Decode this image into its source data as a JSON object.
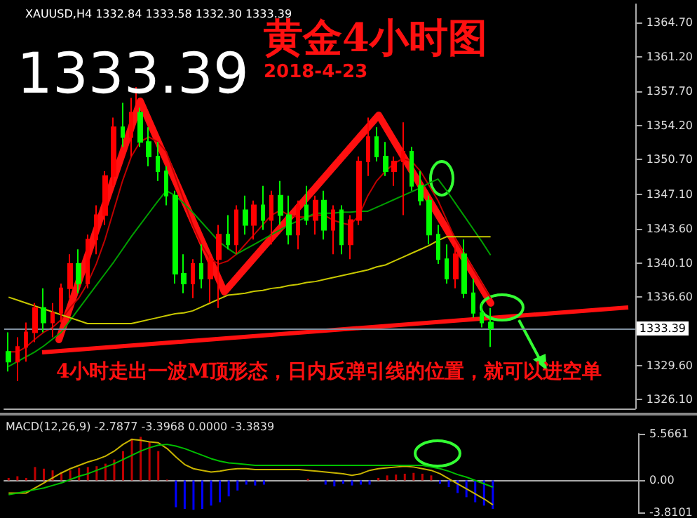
{
  "chart_data": [
    {
      "type": "candlestick",
      "title": "黄金4小时图",
      "subtitle": "2018-4-23",
      "annotations": [
        "XAUUSD,H4 1332.84 1333.58 1332.30 1333.39",
        "1333.39",
        "4小时走出一波M顶形态，日内反弹引线的位置，就可以进空单"
      ],
      "categories": [
        null,
        null,
        null,
        null,
        null,
        null,
        null,
        null,
        null,
        null,
        null,
        null,
        null,
        null,
        null,
        null,
        null,
        null,
        null,
        null,
        null,
        null,
        null,
        null,
        null,
        null,
        null,
        null,
        null,
        null,
        null,
        null,
        null,
        null,
        null,
        null,
        null,
        null,
        null,
        null,
        null,
        null,
        null,
        null,
        null,
        null,
        null,
        null,
        null,
        null,
        null,
        null,
        null,
        null,
        null,
        null,
        null,
        null,
        null,
        null,
        null,
        null,
        null,
        null,
        null,
        null,
        null,
        null,
        null,
        null,
        null,
        null
      ],
      "ohlc": [
        [
          1331,
          1333,
          1329,
          1330
        ],
        [
          1330,
          1332.5,
          1328,
          1331.5
        ],
        [
          1331.5,
          1334,
          1330,
          1333
        ],
        [
          1333,
          1336,
          1332,
          1335.5
        ],
        [
          1335.5,
          1337.5,
          1333,
          1334
        ],
        [
          1334,
          1336,
          1332.5,
          1335
        ],
        [
          1335,
          1338,
          1334,
          1337.5
        ],
        [
          1337.5,
          1341,
          1336.5,
          1340
        ],
        [
          1340,
          1341.5,
          1337,
          1338
        ],
        [
          1338,
          1343,
          1337.5,
          1342.5
        ],
        [
          1342.5,
          1346,
          1341,
          1345
        ],
        [
          1345,
          1349.5,
          1344,
          1349
        ],
        [
          1349,
          1355,
          1348,
          1354
        ],
        [
          1354,
          1356.5,
          1352,
          1353
        ],
        [
          1353,
          1357,
          1351,
          1355.5
        ],
        [
          1355.5,
          1356,
          1352,
          1352.5
        ],
        [
          1352.5,
          1354,
          1350,
          1351
        ],
        [
          1351,
          1352.5,
          1348.5,
          1349.5
        ],
        [
          1349.5,
          1350,
          1346,
          1347
        ],
        [
          1347,
          1347.5,
          1338,
          1339
        ],
        [
          1339,
          1341,
          1337,
          1338
        ],
        [
          1338,
          1340.5,
          1336.5,
          1340
        ],
        [
          1340,
          1342,
          1337.5,
          1338.5
        ],
        [
          1338.5,
          1341,
          1336,
          1340.5
        ],
        [
          1340.5,
          1344,
          1335.5,
          1343
        ],
        [
          1343,
          1345,
          1341.5,
          1342
        ],
        [
          1342,
          1346,
          1341,
          1345.5
        ],
        [
          1345.5,
          1347,
          1343,
          1344
        ],
        [
          1344,
          1346.5,
          1342.5,
          1346
        ],
        [
          1346,
          1348,
          1343.5,
          1344.5
        ],
        [
          1344.5,
          1347.5,
          1342,
          1347
        ],
        [
          1347,
          1348.5,
          1344,
          1345
        ],
        [
          1345,
          1347,
          1342,
          1343
        ],
        [
          1343,
          1346.5,
          1341.5,
          1346
        ],
        [
          1346,
          1348,
          1344,
          1344.5
        ],
        [
          1344.5,
          1347,
          1343,
          1346.5
        ],
        [
          1346.5,
          1347.5,
          1342.5,
          1343.5
        ],
        [
          1343.5,
          1346,
          1341,
          1345.5
        ],
        [
          1345.5,
          1346,
          1341,
          1342
        ],
        [
          1342,
          1345,
          1340.5,
          1344.5
        ],
        [
          1344.5,
          1351,
          1344,
          1350.5
        ],
        [
          1350.5,
          1355,
          1349,
          1353
        ],
        [
          1353,
          1354,
          1350.5,
          1351
        ],
        [
          1351,
          1352.5,
          1349,
          1349.5
        ],
        [
          1349.5,
          1351,
          1348,
          1350.5
        ],
        [
          1350.5,
          1354.5,
          1345,
          1351.5
        ],
        [
          1351.5,
          1352,
          1347.5,
          1348
        ],
        [
          1348,
          1349.5,
          1346,
          1346.5
        ],
        [
          1346.5,
          1347,
          1342,
          1343
        ],
        [
          1343,
          1344,
          1340,
          1340.5
        ],
        [
          1340.5,
          1342,
          1338,
          1338.5
        ],
        [
          1338.5,
          1342,
          1337.5,
          1341
        ],
        [
          1341,
          1342.5,
          1336.5,
          1337
        ],
        [
          1337,
          1338.5,
          1334.5,
          1335
        ],
        [
          1335,
          1336,
          1333.5,
          1334
        ],
        [
          1334,
          1335.5,
          1331.5,
          1333.39
        ],
        null,
        null,
        null,
        null,
        null,
        null,
        null,
        null,
        null,
        null,
        null,
        null,
        null,
        null,
        null,
        null
      ],
      "colors": [
        "#00ff00",
        "#ff0000",
        "#ff0000",
        "#ff0000",
        "#00ff00",
        "#ff0000",
        "#ff0000",
        "#ff0000",
        "#00ff00",
        "#ff0000",
        "#ff0000",
        "#ff0000",
        "#ff0000",
        "#00ff00",
        "#ff0000",
        "#00ff00",
        "#00ff00",
        "#00ff00",
        "#00ff00",
        "#00ff00",
        "#00ff00",
        "#ff0000",
        "#00ff00",
        "#ff0000",
        "#ff0000",
        "#00ff00",
        "#ff0000",
        "#00ff00",
        "#ff0000",
        "#00ff00",
        "#ff0000",
        "#00ff00",
        "#00ff00",
        "#ff0000",
        "#00ff00",
        "#ff0000",
        "#00ff00",
        "#ff0000",
        "#00ff00",
        "#ff0000",
        "#ff0000",
        "#ff0000",
        "#00ff00",
        "#00ff00",
        "#ff0000",
        "#ff0000",
        "#00ff00",
        "#00ff00",
        "#00ff00",
        "#00ff00",
        "#00ff00",
        "#ff0000",
        "#00ff00",
        "#00ff00",
        "#00ff00",
        "#00ff00",
        null,
        null,
        null,
        null,
        null,
        null,
        null,
        null,
        null,
        null,
        null,
        null,
        null,
        null,
        null,
        null
      ],
      "series": [
        {
          "type": "line",
          "color": "#c00000",
          "values": [
            1331,
            1331,
            1331.5,
            1332.3,
            1333,
            1333.5,
            1334.3,
            1335.5,
            1336.5,
            1338,
            1340,
            1342.5,
            1345.5,
            1348.5,
            1351,
            1352.5,
            1353,
            1352.5,
            1351.5,
            1349,
            1346.5,
            1344,
            1342,
            1340.5,
            1340,
            1340.3,
            1341,
            1342,
            1343,
            1344,
            1345,
            1345.5,
            1345,
            1344.8,
            1344.8,
            1345,
            1345,
            1344.5,
            1344.2,
            1344,
            1345,
            1347,
            1348.5,
            1349.5,
            1350.3,
            1350.8,
            1350.5,
            1349.5,
            1348,
            1346.5,
            1344.5,
            1342.5,
            1341,
            1339.5,
            1338,
            1336.5,
            null,
            null,
            null,
            null,
            null,
            null,
            null,
            null,
            null,
            null,
            null,
            null,
            null,
            null,
            null,
            null
          ]
        },
        {
          "type": "line",
          "color": "#00a000",
          "values": [
            1329.5,
            1330,
            1330.5,
            1331,
            1331.6,
            1332.3,
            1333,
            1334.2,
            1335.4,
            1336.6,
            1337.8,
            1339,
            1340.2,
            1341.5,
            1342.8,
            1344,
            1345.2,
            1346.4,
            1347.5,
            1347,
            1346.2,
            1345.3,
            1344.3,
            1343.3,
            1342.3,
            1341.6,
            1341,
            1341.5,
            1342,
            1342.5,
            1343,
            1343.5,
            1344,
            1344.4,
            1344.8,
            1345.2,
            1345.2,
            1345.2,
            1345.3,
            1345.3,
            1345.4,
            1345.4,
            1345.8,
            1346.2,
            1346.6,
            1347,
            1347.4,
            1347.8,
            1348.3,
            1348.7,
            1347.5,
            1346.2,
            1344.9,
            1343.6,
            1342.3,
            1340.9,
            null,
            null,
            null,
            null,
            null,
            null,
            null,
            null,
            null,
            null,
            null,
            null,
            null,
            null,
            null,
            null
          ]
        },
        {
          "type": "line",
          "color": "#c8c800",
          "values": [
            1336.6,
            1336.3,
            1336,
            1335.7,
            1335.4,
            1335.1,
            1334.8,
            1334.5,
            1334.2,
            1333.9,
            1333.9,
            1333.9,
            1333.9,
            1333.9,
            1333.9,
            1334.1,
            1334.3,
            1334.5,
            1334.7,
            1334.9,
            1335,
            1335.2,
            1335.6,
            1336,
            1336.4,
            1336.8,
            1336.9,
            1337,
            1337.2,
            1337.3,
            1337.5,
            1337.6,
            1337.8,
            1337.9,
            1338.1,
            1338.2,
            1338.4,
            1338.6,
            1338.8,
            1339,
            1339.2,
            1339.4,
            1339.7,
            1339.9,
            1340.3,
            1340.7,
            1341.1,
            1341.5,
            1341.9,
            1342.4,
            1342.8,
            1342.8,
            1342.8,
            1342.8,
            1342.8,
            1342.8,
            null,
            null,
            null,
            null,
            null,
            null,
            null,
            null,
            null,
            null,
            null,
            null,
            null,
            null,
            null,
            null
          ]
        }
      ],
      "ylim": [
        1325.2,
        1366.6
      ],
      "yticks": [
        {
          "value": 1326.1,
          "label": "1326.10"
        },
        {
          "value": 1329.6,
          "label": "1329.60"
        },
        {
          "value": 1336.6,
          "label": "1336.60"
        },
        {
          "value": 1340.1,
          "label": "1340.10"
        },
        {
          "value": 1343.6,
          "label": "1343.60"
        },
        {
          "value": 1347.1,
          "label": "1347.10"
        },
        {
          "value": 1350.7,
          "label": "1350.70"
        },
        {
          "value": 1354.2,
          "label": "1354.20"
        },
        {
          "value": 1357.7,
          "label": "1357.70"
        },
        {
          "value": 1361.2,
          "label": "1361.20"
        },
        {
          "value": 1364.7,
          "label": "1364.70"
        }
      ],
      "ref_lines": [
        {
          "axis": "y",
          "value": 1333.39,
          "label": "1333.39",
          "color": "#8090a0"
        }
      ],
      "marker": "none",
      "tick_labels": "y"
    },
    {
      "type": "bar",
      "annotations": [
        "MACD(12,26,9) -2.7877 -3.3968 0.0000 -3.3839"
      ],
      "categories": [
        null,
        null,
        null,
        null,
        null,
        null,
        null,
        null,
        null,
        null,
        null,
        null,
        null,
        null,
        null,
        null,
        null,
        null,
        null,
        null,
        null,
        null,
        null,
        null,
        null,
        null,
        null,
        null,
        null,
        null,
        null,
        null,
        null,
        null,
        null,
        null,
        null,
        null,
        null,
        null,
        null,
        null,
        null,
        null,
        null,
        null,
        null,
        null,
        null,
        null,
        null,
        null,
        null,
        null,
        null,
        null,
        null,
        null,
        null,
        null,
        null,
        null,
        null,
        null,
        null,
        null,
        null,
        null,
        null,
        null,
        null,
        null
      ],
      "series": [
        {
          "colors": [
            "#c00000",
            "#c00000",
            "#c00000",
            "#c00000",
            "#c00000",
            "#c00000",
            "#c00000",
            "#c00000",
            "#c00000",
            "#c00000",
            "#c00000",
            "#c00000",
            "#c00000",
            "#c00000",
            "#c00000",
            "#c00000",
            "#c00000",
            "#c00000",
            "#c00000",
            "#0000ff",
            "#0000ff",
            "#0000ff",
            "#0000ff",
            "#0000ff",
            "#0000ff",
            "#0000ff",
            "#0000ff",
            "#0000ff",
            "#0000ff",
            "#0000ff",
            "#0000ff",
            "#0000ff",
            "#0000ff",
            "#0000ff",
            "#c00000",
            "#0000ff",
            "#0000ff",
            "#0000ff",
            "#0000ff",
            "#0000ff",
            "#0000ff",
            "#0000ff",
            "#c00000",
            "#c00000",
            "#c00000",
            "#c00000",
            "#c00000",
            "#c00000",
            "#c00000",
            "#0000ff",
            "#0000ff",
            "#0000ff",
            "#0000ff",
            "#0000ff",
            "#0000ff",
            "#0000ff",
            null,
            null,
            null,
            null,
            null,
            null,
            null,
            null,
            null,
            null,
            null,
            null,
            null,
            null,
            null,
            null
          ],
          "values": [
            0.3,
            0.5,
            0.3,
            1.6,
            1.4,
            1.2,
            1,
            1.2,
            1.5,
            1.6,
            1.7,
            2,
            2.5,
            3.5,
            5,
            5.2,
            4.6,
            3.5,
            0.1,
            -3.2,
            -3.4,
            -3.5,
            -3.4,
            -3,
            -2.6,
            -1.9,
            -1.2,
            -0.5,
            -0.6,
            -0.5,
            0,
            0,
            0,
            0,
            0.2,
            0,
            -0.5,
            -0.7,
            -0.4,
            -0.6,
            -0.5,
            -0.5,
            0.3,
            0.6,
            0.7,
            0.8,
            0.9,
            0.8,
            0.6,
            -0.4,
            -0.8,
            -1.5,
            -2,
            -2.6,
            -3,
            -3.4,
            null,
            null,
            null,
            null,
            null,
            null,
            null,
            null,
            null,
            null,
            null,
            null,
            null,
            null,
            null,
            null
          ]
        },
        {
          "type": "line",
          "color": "#c8b400",
          "values": [
            -1.5,
            -1.5,
            -1.5,
            -0.9,
            -0.3,
            0.3,
            0.9,
            1.4,
            1.8,
            2.2,
            2.5,
            2.9,
            3.5,
            4.3,
            4.9,
            4.8,
            4.6,
            4.5,
            3.8,
            2.8,
            1.9,
            1.4,
            1.2,
            1,
            1.1,
            1.3,
            1.4,
            1.4,
            1.3,
            1.3,
            1.3,
            1.3,
            1.3,
            1.3,
            1.2,
            1.1,
            1,
            0.9,
            0.8,
            0.6,
            0.8,
            1.2,
            1.4,
            1.5,
            1.6,
            1.7,
            1.6,
            1.4,
            1.2,
            0.8,
            0.2,
            -0.4,
            -1,
            -1.6,
            -2.2,
            -2.9,
            null,
            null,
            null,
            null,
            null,
            null,
            null,
            null,
            null,
            null,
            null,
            null,
            null,
            null,
            null,
            null
          ]
        },
        {
          "type": "line",
          "color": "#00c000",
          "values": [
            -1.7,
            -1.5,
            -1.3,
            -1.1,
            -0.9,
            -0.6,
            -0.3,
            0.1,
            0.5,
            0.8,
            1.2,
            1.6,
            2,
            2.5,
            3,
            3.5,
            3.9,
            4.2,
            4.3,
            4.1,
            3.8,
            3.4,
            3,
            2.6,
            2.3,
            2.1,
            2,
            1.9,
            1.8,
            1.8,
            1.8,
            1.8,
            1.8,
            1.8,
            1.8,
            1.8,
            1.8,
            1.8,
            1.8,
            1.8,
            1.8,
            1.8,
            1.8,
            1.8,
            1.8,
            1.8,
            1.8,
            1.8,
            1.6,
            1.4,
            1.1,
            0.7,
            0.4,
            0,
            -0.4,
            -0.8,
            null,
            null,
            null,
            null,
            null,
            null,
            null,
            null,
            null,
            null,
            null,
            null,
            null,
            null,
            null,
            null
          ]
        }
      ],
      "ylim": [
        -3.8101,
        5.5661
      ],
      "yticks": [
        5.5661,
        {
          "value": 0,
          "label": "0.00"
        },
        -3.8101
      ],
      "marker": "none",
      "tick_labels": "y"
    }
  ]
}
